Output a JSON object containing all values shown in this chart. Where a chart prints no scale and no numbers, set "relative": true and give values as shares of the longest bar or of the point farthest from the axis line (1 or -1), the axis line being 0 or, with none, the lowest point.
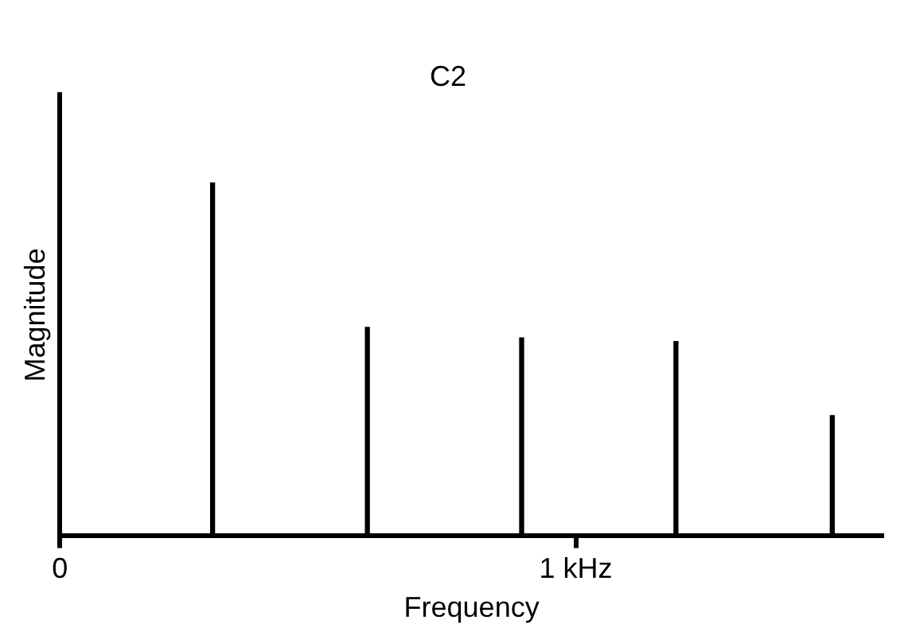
{
  "chart_data": {
    "type": "bar",
    "title": "C2",
    "xlabel": "Frequency",
    "ylabel": "Magnitude",
    "relative": true,
    "grid": false,
    "legend": false,
    "x": [
      0.296,
      0.596,
      0.895,
      1.194,
      1.497
    ],
    "values": [
      1,
      0.59,
      0.56,
      0.55,
      0.34
    ],
    "color": "#000000",
    "xlim": [
      0,
      1.596
    ],
    "xticks": [
      {
        "value": 0,
        "label": "0"
      },
      {
        "value": 1,
        "label": "1 kHz"
      }
    ]
  }
}
